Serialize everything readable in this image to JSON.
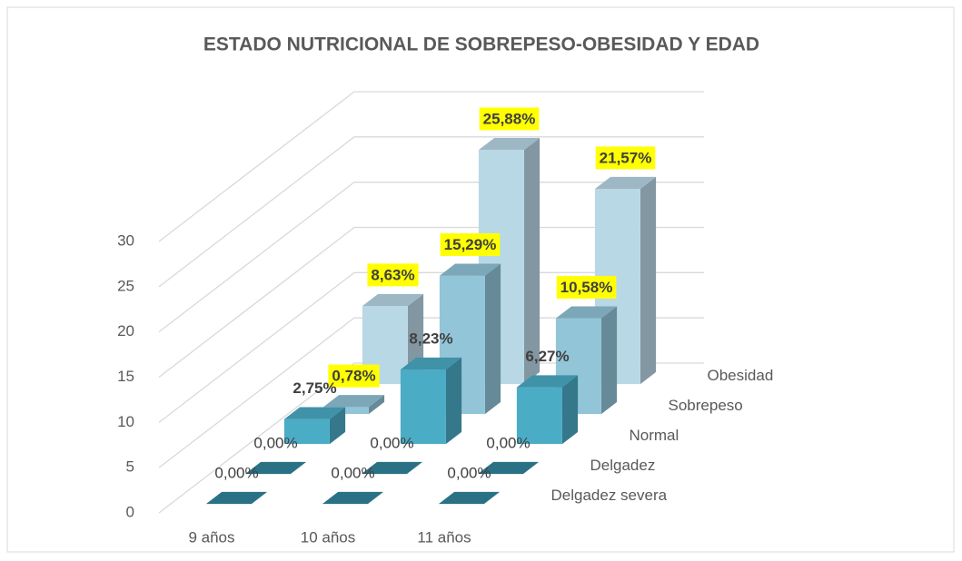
{
  "chart_data": {
    "type": "bar3d",
    "title": "ESTADO NUTRICIONAL DE SOBREPESO-OBESIDAD Y EDAD",
    "categories": [
      "9 años",
      "10 años",
      "11 años"
    ],
    "series": [
      {
        "name": "Delgadez severa",
        "color": "#31859c",
        "values": [
          0,
          0,
          0
        ],
        "value_labels": [
          "0,00%",
          "0,00%",
          "0,00%"
        ]
      },
      {
        "name": "Delgadez",
        "color": "#31859c",
        "values": [
          0,
          0,
          0
        ],
        "value_labels": [
          "0,00%",
          "0,00%",
          "0,00%"
        ]
      },
      {
        "name": "Normal",
        "color": "#4bacc6",
        "values": [
          2.75,
          8.23,
          6.27
        ],
        "value_labels": [
          "2,75%",
          "8,23%",
          "6,27%"
        ]
      },
      {
        "name": "Sobrepeso",
        "color": "#92c5d8",
        "values": [
          0.78,
          15.29,
          10.58
        ],
        "value_labels": [
          "0,78%",
          "15,29%",
          "10,58%"
        ],
        "label_background": "#ffff00"
      },
      {
        "name": "Obesidad",
        "color": "#b9d8e6",
        "values": [
          8.63,
          25.88,
          21.57
        ],
        "value_labels": [
          "8,63%",
          "25,88%",
          "21,57%"
        ],
        "label_background": "#ffff00"
      }
    ],
    "ylim": [
      0,
      30
    ],
    "yticks": [
      0,
      5,
      10,
      15,
      20,
      25,
      30
    ],
    "grid": true
  }
}
